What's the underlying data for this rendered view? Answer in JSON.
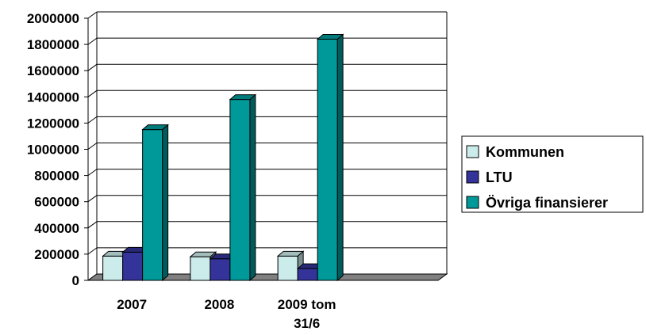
{
  "chart_data": {
    "type": "bar",
    "three_d": true,
    "categories": [
      [
        "2007"
      ],
      [
        "2008"
      ],
      [
        "2009 tom",
        "31/6"
      ]
    ],
    "series": [
      {
        "name": "Kommunen",
        "color": "#ccecec",
        "values": [
          185000,
          180000,
          185000
        ]
      },
      {
        "name": "LTU",
        "color": "#333399",
        "values": [
          215000,
          165000,
          90000
        ]
      },
      {
        "name": "Övriga finansierer",
        "color": "#009999",
        "values": [
          1150000,
          1380000,
          1840000
        ]
      }
    ],
    "yticks": [
      "0",
      "200000",
      "400000",
      "600000",
      "800000",
      "1000000",
      "1200000",
      "1400000",
      "1600000",
      "1800000",
      "2000000"
    ],
    "ylim": [
      0,
      2000000
    ],
    "grid": true,
    "legend": "right",
    "floor_color": "#808080"
  }
}
